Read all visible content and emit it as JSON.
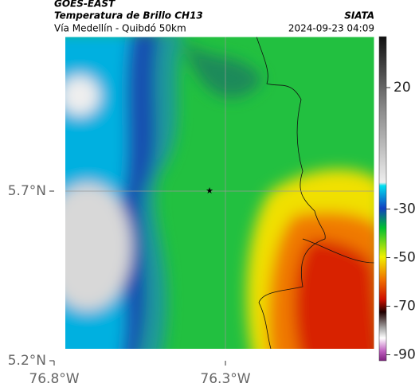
{
  "header": {
    "satellite": "GOES-EAST",
    "product": "Temperatura de Brillo CH13",
    "region": "Vía Medellín - Quibdó 50km",
    "source": "SIATA",
    "datetime": "2024-09-23 04:09"
  },
  "axes": {
    "lat_ticks": [
      {
        "value": 5.7,
        "label": "5.7°N"
      },
      {
        "value": 5.2,
        "label": "5.2°N"
      }
    ],
    "lon_ticks": [
      {
        "value": -76.8,
        "label": "76.8°W"
      },
      {
        "value": -76.3,
        "label": "76.3°W"
      }
    ]
  },
  "colorbar": {
    "ticks": [
      20,
      -30,
      -50,
      -70,
      -90
    ]
  }
}
